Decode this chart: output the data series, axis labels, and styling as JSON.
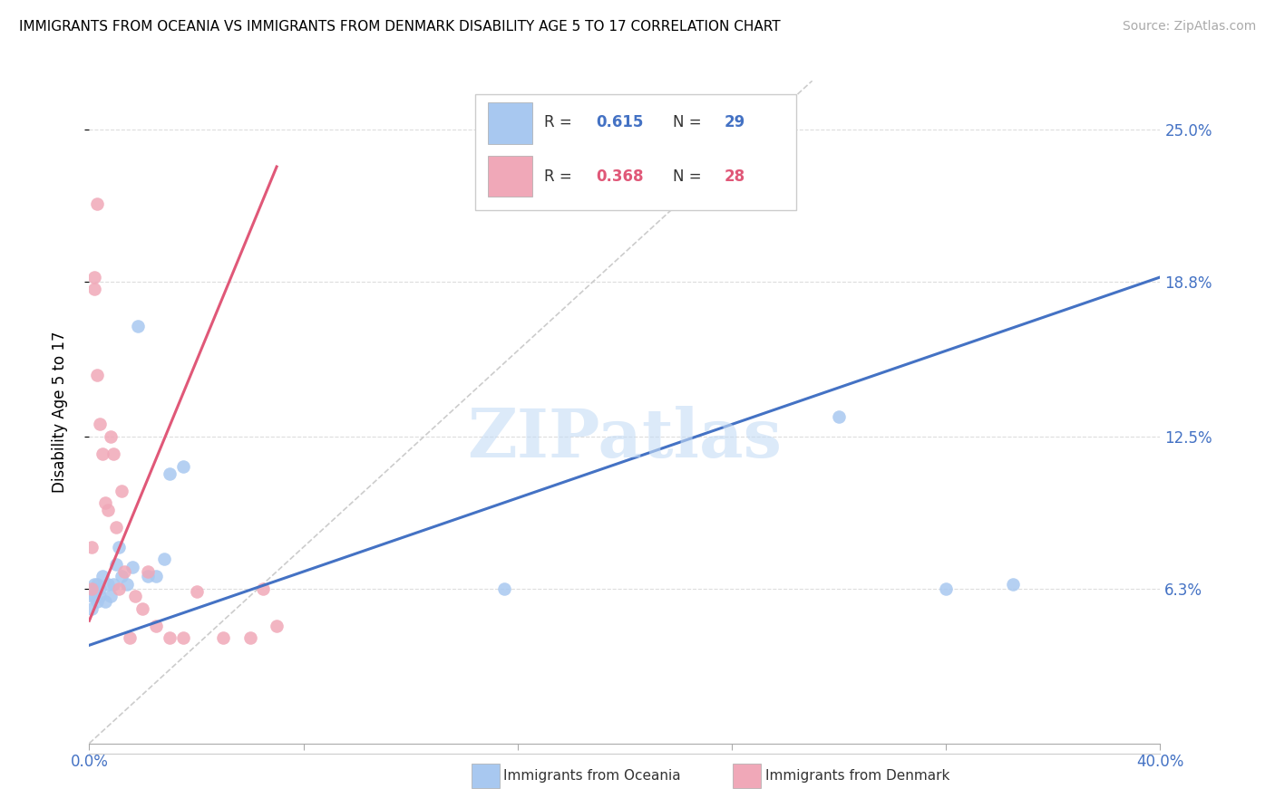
{
  "title": "IMMIGRANTS FROM OCEANIA VS IMMIGRANTS FROM DENMARK DISABILITY AGE 5 TO 17 CORRELATION CHART",
  "source": "Source: ZipAtlas.com",
  "ylabel": "Disability Age 5 to 17",
  "xlim": [
    0.0,
    0.4
  ],
  "ylim": [
    0.0,
    0.27
  ],
  "yticks": [
    0.063,
    0.125,
    0.188,
    0.25
  ],
  "ytick_labels": [
    "6.3%",
    "12.5%",
    "18.8%",
    "25.0%"
  ],
  "watermark": "ZIPatlas",
  "legend_r1": "0.615",
  "legend_n1": "29",
  "legend_r2": "0.368",
  "legend_n2": "28",
  "oceania_color": "#A8C8F0",
  "denmark_color": "#F0A8B8",
  "oceania_line_color": "#4472C4",
  "denmark_line_color": "#E05878",
  "ref_line_color": "#CCCCCC",
  "oceania_x": [
    0.001,
    0.001,
    0.002,
    0.002,
    0.002,
    0.003,
    0.003,
    0.004,
    0.004,
    0.005,
    0.006,
    0.007,
    0.008,
    0.009,
    0.01,
    0.011,
    0.012,
    0.014,
    0.016,
    0.018,
    0.022,
    0.025,
    0.028,
    0.03,
    0.035,
    0.155,
    0.28,
    0.32,
    0.345
  ],
  "oceania_y": [
    0.06,
    0.055,
    0.063,
    0.06,
    0.065,
    0.058,
    0.065,
    0.06,
    0.063,
    0.068,
    0.058,
    0.065,
    0.06,
    0.065,
    0.073,
    0.08,
    0.068,
    0.065,
    0.072,
    0.17,
    0.068,
    0.068,
    0.075,
    0.11,
    0.113,
    0.063,
    0.133,
    0.063,
    0.065
  ],
  "denmark_x": [
    0.001,
    0.001,
    0.002,
    0.002,
    0.003,
    0.003,
    0.004,
    0.005,
    0.006,
    0.007,
    0.008,
    0.009,
    0.01,
    0.011,
    0.012,
    0.013,
    0.015,
    0.017,
    0.02,
    0.022,
    0.025,
    0.03,
    0.035,
    0.04,
    0.05,
    0.06,
    0.065,
    0.07
  ],
  "denmark_y": [
    0.063,
    0.08,
    0.185,
    0.19,
    0.22,
    0.15,
    0.13,
    0.118,
    0.098,
    0.095,
    0.125,
    0.118,
    0.088,
    0.063,
    0.103,
    0.07,
    0.043,
    0.06,
    0.055,
    0.07,
    0.048,
    0.043,
    0.043,
    0.062,
    0.043,
    0.043,
    0.063,
    0.048
  ],
  "blue_line_x0": 0.0,
  "blue_line_y0": 0.04,
  "blue_line_x1": 0.4,
  "blue_line_y1": 0.19,
  "pink_line_x0": 0.0,
  "pink_line_y0": 0.05,
  "pink_line_x1": 0.07,
  "pink_line_y1": 0.235,
  "ref_line_x0": 0.0,
  "ref_line_y0": 0.0,
  "ref_line_x1": 0.27,
  "ref_line_y1": 0.27
}
